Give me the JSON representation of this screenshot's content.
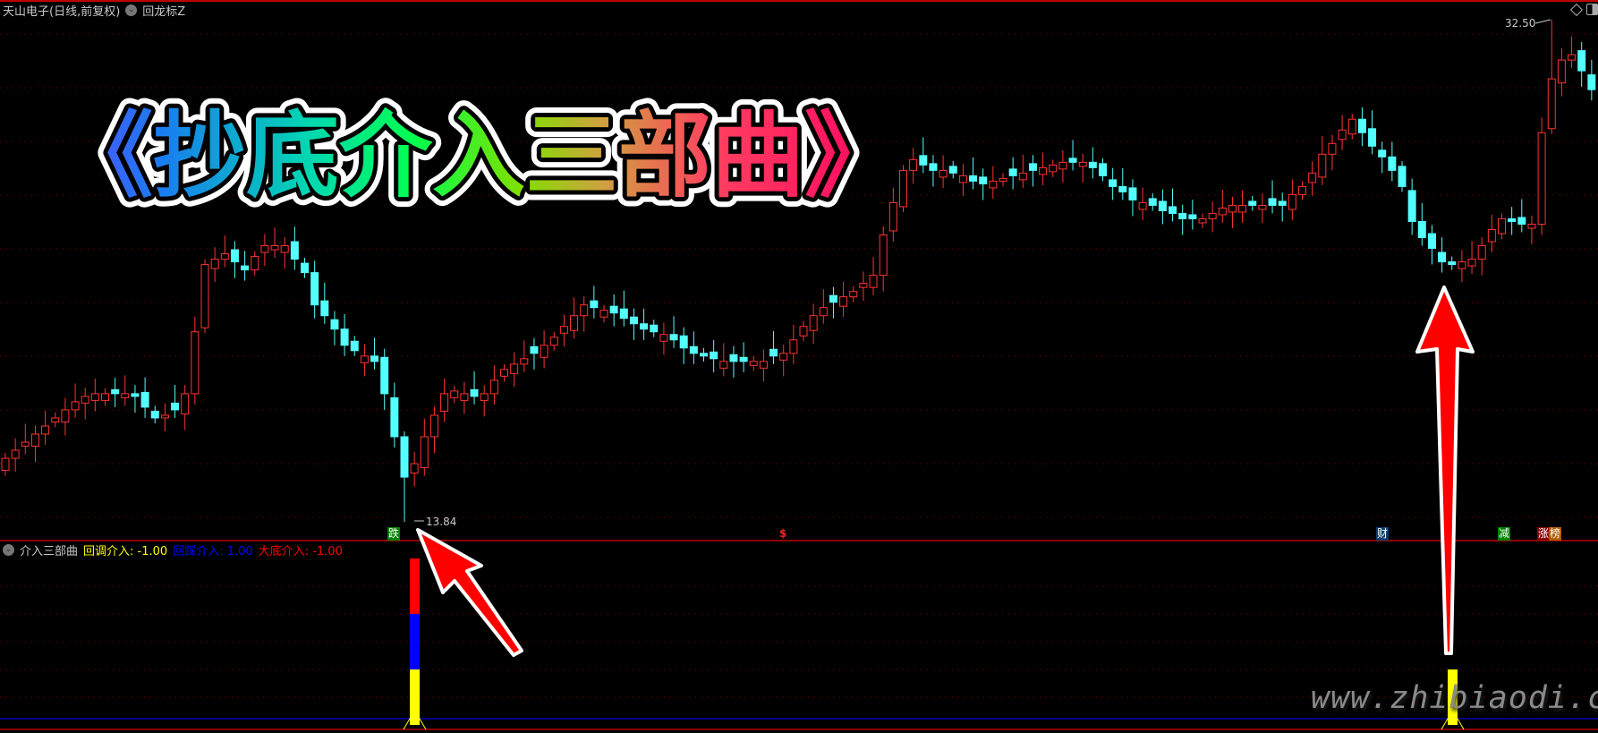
{
  "header": {
    "stock_title": "天山电子(日线,前复权)",
    "indicator_name": "回龙标Z",
    "diamond_icon": "diamond-icon",
    "panel_toggle_icon": "panel-toggle-icon"
  },
  "banner": {
    "text": "《抄底介入三部曲》"
  },
  "price_labels": {
    "high": "32.50",
    "low": "13.84"
  },
  "markers": [
    {
      "label": "跌",
      "bg": "#008000",
      "color": "#ffffff"
    },
    {
      "label": "$",
      "bg": "transparent",
      "color": "#ff2020"
    },
    {
      "label": "财",
      "bg": "#103a6a",
      "color": "#ffffff"
    },
    {
      "label": "减",
      "bg": "#008000",
      "color": "#ffffff"
    },
    {
      "label": "涨",
      "bg": "#8b0000",
      "color": "#ffffff"
    },
    {
      "label": "榜",
      "bg": "#b05a00",
      "color": "#ffffff"
    }
  ],
  "indicator": {
    "name": "介入三部曲",
    "lines": [
      {
        "label": "回调介入",
        "value": ": -1.00",
        "color": "#ffff00"
      },
      {
        "label": "回踩介入",
        "value": ": 1.00",
        "color": "#0000ff"
      },
      {
        "label": "大底介入",
        "value": ": -1.00",
        "color": "#ff0000"
      }
    ]
  },
  "colors": {
    "up": "#ff3232",
    "down": "#54ffff",
    "grid": "#8b0000",
    "bg": "#000000"
  },
  "watermark": "www.zhibiaodi.com",
  "candles_close": [
    16.2,
    16.5,
    16.8,
    17.1,
    17.4,
    17.7,
    18.0,
    18.3,
    18.5,
    18.6,
    18.6,
    18.6,
    18.6,
    18.5,
    18.1,
    17.7,
    17.8,
    18.0,
    18.6,
    20.9,
    23.4,
    23.6,
    23.8,
    23.5,
    23.2,
    23.7,
    24.1,
    24.1,
    24.1,
    23.6,
    23.1,
    21.9,
    21.5,
    21.0,
    20.4,
    20.2,
    20.0,
    19.8,
    18.6,
    17.0,
    15.5,
    16.0,
    17.0,
    17.8,
    18.6,
    18.7,
    18.6,
    18.5,
    18.6,
    19.1,
    19.5,
    19.7,
    19.9,
    20.1,
    20.4,
    20.7,
    21.1,
    21.5,
    21.9,
    21.8,
    21.7,
    21.6,
    21.4,
    21.2,
    21.0,
    20.9,
    20.8,
    20.6,
    20.3,
    20.1,
    20.0,
    19.9,
    19.8,
    19.8,
    19.8,
    19.8,
    19.8,
    20.0,
    20.1,
    20.6,
    21.1,
    21.5,
    21.8,
    22.0,
    22.2,
    22.4,
    22.7,
    23.0,
    24.5,
    25.7,
    26.9,
    27.3,
    27.1,
    26.9,
    26.9,
    26.8,
    26.7,
    26.5,
    26.4,
    26.5,
    26.6,
    26.7,
    26.8,
    26.9,
    27.0,
    27.1,
    27.2,
    27.2,
    27.2,
    27.0,
    26.7,
    26.3,
    26.1,
    25.8,
    25.7,
    25.6,
    25.4,
    25.3,
    25.1,
    25.1,
    25.1,
    25.3,
    25.5,
    25.6,
    25.6,
    25.6,
    25.6,
    25.6,
    25.6,
    26.0,
    26.3,
    26.8,
    27.5,
    27.9,
    28.4,
    28.8,
    28.3,
    27.8,
    27.4,
    26.9,
    26.3,
    25.0,
    24.4,
    24.0,
    23.5,
    23.4,
    23.5,
    23.6,
    24.1,
    24.7,
    25.1,
    25.0,
    24.9,
    24.9,
    28.3,
    30.3,
    31.0,
    31.2,
    30.6,
    29.9
  ],
  "signal_bars": [
    {
      "segments": [
        "#ff0000",
        "#0000ff",
        "#ffff00"
      ]
    },
    {
      "segments": [
        "#ffff00"
      ]
    }
  ]
}
